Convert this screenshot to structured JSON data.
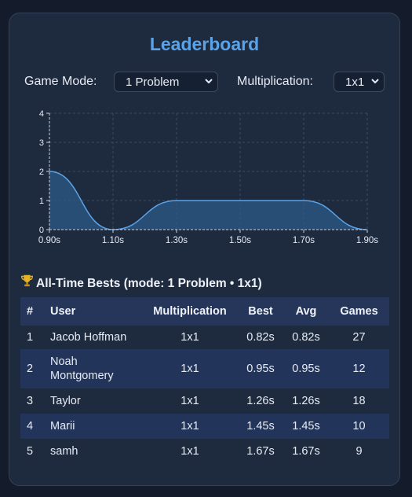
{
  "leaderboard": {
    "title": "Leaderboard",
    "game_mode_label": "Game Mode:",
    "game_mode_value": "1 Problem",
    "multiplication_label": "Multiplication:",
    "multiplication_value": "1x1"
  },
  "chart_data": {
    "type": "area",
    "x_ticks": [
      "0.90s",
      "1.10s",
      "1.30s",
      "1.50s",
      "1.70s",
      "1.90s"
    ],
    "y_ticks": [
      "0",
      "1",
      "2",
      "3",
      "4"
    ],
    "ylim": [
      0,
      4
    ],
    "xlim": [
      0.9,
      1.9
    ],
    "x": [
      0.9,
      1.1,
      1.3,
      1.5,
      1.7,
      1.9
    ],
    "values": [
      2,
      0,
      1,
      1,
      1,
      0
    ],
    "grid": true,
    "fill_color": "#2e5b8a",
    "line_color": "#5aa3e8"
  },
  "table": {
    "section_title": "All-Time Bests (mode: 1 Problem • 1x1)",
    "trophy_icon": "trophy-icon",
    "headers": {
      "rank": "#",
      "user": "User",
      "multiplication": "Multiplication",
      "best": "Best",
      "avg": "Avg",
      "games": "Games"
    },
    "rows": [
      {
        "rank": "1",
        "user": "Jacob Hoffman",
        "multiplication": "1x1",
        "best": "0.82s",
        "avg": "0.82s",
        "games": "27"
      },
      {
        "rank": "2",
        "user": "Noah Montgomery",
        "multiplication": "1x1",
        "best": "0.95s",
        "avg": "0.95s",
        "games": "12"
      },
      {
        "rank": "3",
        "user": "Taylor",
        "multiplication": "1x1",
        "best": "1.26s",
        "avg": "1.26s",
        "games": "18"
      },
      {
        "rank": "4",
        "user": "Marii",
        "multiplication": "1x1",
        "best": "1.45s",
        "avg": "1.45s",
        "games": "10"
      },
      {
        "rank": "5",
        "user": "samh",
        "multiplication": "1x1",
        "best": "1.67s",
        "avg": "1.67s",
        "games": "9"
      }
    ]
  }
}
